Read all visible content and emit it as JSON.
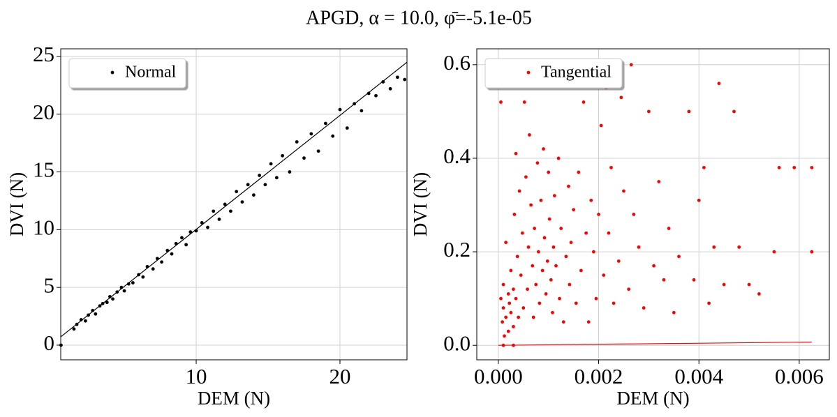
{
  "title": "APGD, α = 10.0, φ̄=-5.1e-05",
  "chart_data": [
    {
      "type": "scatter",
      "xlabel": "DEM (N)",
      "ylabel": "DVI (N)",
      "grid": true,
      "legend": "upper left",
      "xlim": [
        0.58,
        24.66
      ],
      "ylim": [
        -1.27,
        25.66
      ],
      "xticks": [
        10,
        20
      ],
      "yticks": [
        0,
        5,
        10,
        15,
        20,
        25
      ],
      "line": {
        "color": "#000000",
        "x": [
          0.58,
          24.66
        ],
        "values": [
          0.72,
          24.5
        ]
      },
      "series": [
        {
          "name": "Normal",
          "color": "#000000",
          "x": [
            0.6,
            1.5,
            1.7,
            2.0,
            2.3,
            2.5,
            2.8,
            3.0,
            3.3,
            3.5,
            3.8,
            4.0,
            4.2,
            4.5,
            4.8,
            5.0,
            5.3,
            5.6,
            6.0,
            6.3,
            6.6,
            7.0,
            7.3,
            7.6,
            8.0,
            8.3,
            8.6,
            9.0,
            9.3,
            9.6,
            10.0,
            10.4,
            10.8,
            11.2,
            11.6,
            12.0,
            12.4,
            12.8,
            13.2,
            13.6,
            14.0,
            14.4,
            14.8,
            15.2,
            15.6,
            16.0,
            16.5,
            17.0,
            17.5,
            18.0,
            18.5,
            19.0,
            19.5,
            20.0,
            20.5,
            21.0,
            21.5,
            22.0,
            22.5,
            23.0,
            23.5,
            24.0,
            24.5
          ],
          "values": [
            0,
            1.4,
            1.8,
            2.2,
            2.1,
            2.6,
            3.0,
            2.7,
            3.4,
            3.6,
            3.7,
            4.2,
            4.0,
            4.6,
            5.0,
            4.7,
            5.3,
            5.4,
            6.1,
            5.9,
            6.8,
            6.6,
            7.5,
            7.2,
            8.2,
            7.9,
            8.8,
            9.3,
            8.7,
            9.8,
            9.9,
            10.6,
            10.2,
            11.6,
            10.9,
            12.2,
            11.6,
            13.3,
            12.4,
            13.9,
            13.0,
            14.7,
            13.9,
            15.7,
            14.5,
            16.4,
            15.0,
            17.6,
            16.2,
            18.3,
            16.8,
            19.2,
            18.1,
            20.4,
            18.8,
            20.9,
            20.3,
            21.8,
            21.6,
            22.8,
            22.2,
            23.2,
            23.0
          ]
        }
      ]
    },
    {
      "type": "scatter",
      "xlabel": "DEM (N)",
      "ylabel": "DVI (N)",
      "grid": true,
      "legend": "upper left",
      "xlim": [
        -0.00043,
        0.0066
      ],
      "ylim": [
        -0.031,
        0.634
      ],
      "xticks": [
        {
          "value": 0,
          "label": "0.000"
        },
        0.002,
        0.004,
        0.006
      ],
      "yticks": [
        {
          "value": 0,
          "label": "0.0"
        },
        0.2,
        0.4,
        0.6
      ],
      "line": {
        "color": "#ff0000",
        "x": [
          0,
          0.00625
        ],
        "values": [
          0,
          0.007
        ]
      },
      "series": [
        {
          "name": "Tangential",
          "color": "#ff0000",
          "x": [
            5e-05,
            5e-05,
            8e-05,
            0.0001,
            0.0001,
            0.00012,
            0.00015,
            0.00015,
            0.0002,
            0.0002,
            0.00022,
            0.00025,
            0.00025,
            0.0003,
            0.0003,
            0.00032,
            0.00035,
            0.00035,
            0.00038,
            0.0004,
            0.00042,
            0.00045,
            0.00048,
            0.0005,
            0.00052,
            0.00055,
            0.00058,
            0.0006,
            0.00062,
            0.00065,
            0.00068,
            0.0007,
            0.00072,
            0.00075,
            0.00078,
            0.0008,
            0.00082,
            0.00085,
            0.00088,
            0.0009,
            0.00092,
            0.00095,
            0.00098,
            0.001,
            0.00102,
            0.00105,
            0.00108,
            0.0011,
            0.00112,
            0.00115,
            0.0012,
            0.00122,
            0.00125,
            0.0013,
            0.00135,
            0.0014,
            0.00142,
            0.00145,
            0.0015,
            0.00155,
            0.0016,
            0.00165,
            0.0017,
            0.00175,
            0.0018,
            0.00185,
            0.0019,
            0.00195,
            0.002,
            0.00205,
            0.0021,
            0.00215,
            0.0022,
            0.00225,
            0.0023,
            0.0024,
            0.00245,
            0.0025,
            0.0026,
            0.00265,
            0.0027,
            0.0028,
            0.0029,
            0.003,
            0.0031,
            0.0032,
            0.0033,
            0.0034,
            0.0035,
            0.0036,
            0.0038,
            0.0039,
            0.004,
            0.0041,
            0.0042,
            0.0043,
            0.0044,
            0.0045,
            0.0047,
            0.0048,
            0.005,
            0.0052,
            0.0055,
            0.0056,
            0.0059,
            0.00625,
            0.00625,
            0.0001,
            0.0003
          ],
          "values": [
            0.52,
            0.1,
            0.05,
            0.13,
            0.08,
            0.02,
            0.22,
            0.06,
            0.11,
            0.03,
            0.09,
            0.16,
            0.07,
            0.12,
            0.04,
            0.28,
            0.41,
            0.1,
            0.19,
            0.06,
            0.33,
            0.15,
            0.24,
            0.08,
            0.52,
            0.36,
            0.12,
            0.21,
            0.45,
            0.3,
            0.17,
            0.06,
            0.25,
            0.13,
            0.39,
            0.2,
            0.09,
            0.31,
            0.16,
            0.42,
            0.23,
            0.11,
            0.18,
            0.37,
            0.27,
            0.14,
            0.07,
            0.21,
            0.32,
            0.17,
            0.4,
            0.1,
            0.25,
            0.05,
            0.19,
            0.34,
            0.13,
            0.22,
            0.29,
            0.09,
            0.37,
            0.16,
            0.52,
            0.24,
            0.05,
            0.31,
            0.2,
            0.1,
            0.28,
            0.47,
            0.15,
            0.55,
            0.24,
            0.38,
            0.09,
            0.18,
            0.53,
            0.33,
            0.12,
            0.6,
            0.28,
            0.21,
            0.08,
            0.5,
            0.17,
            0.35,
            0.14,
            0.25,
            0.07,
            0.19,
            0.5,
            0.14,
            0.31,
            0.38,
            0.09,
            0.21,
            0.56,
            0.13,
            0.5,
            0.21,
            0.13,
            0.11,
            0.2,
            0.38,
            0.38,
            0.38,
            0.2,
            0.0,
            0.0
          ]
        }
      ]
    }
  ]
}
